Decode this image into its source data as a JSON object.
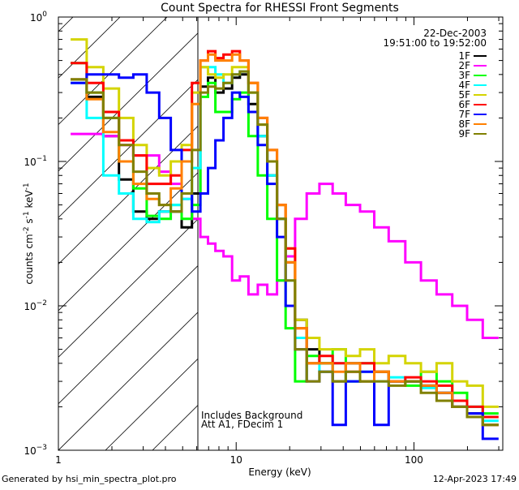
{
  "chart_data": {
    "type": "line",
    "title": "Count Spectra for RHESSI Front Segments",
    "xlabel": "Energy (keV)",
    "ylabel": "counts cm^-2 s^-1 keV^-1",
    "ylabel_parts": {
      "a": "counts cm",
      "b": "-2",
      "c": " s",
      "d": "-1",
      "e": " keV",
      "f": "-1"
    },
    "xscale": "log",
    "yscale": "log",
    "xlim": [
      1,
      316
    ],
    "ylim": [
      0.001,
      1
    ],
    "x_ticks": [
      {
        "value": 1,
        "label": "1"
      },
      {
        "value": 10,
        "label": "10"
      },
      {
        "value": 100,
        "label": "100"
      }
    ],
    "y_ticks": [
      {
        "value": 1,
        "base": "10",
        "exp": "0"
      },
      {
        "value": 0.1,
        "base": "10",
        "exp": "−1"
      },
      {
        "value": 0.01,
        "base": "10",
        "exp": "−2"
      },
      {
        "value": 0.001,
        "base": "10",
        "exp": "−3"
      }
    ],
    "date": "22-Dec-2003",
    "time_range": "19:51:00 to 19:52:00",
    "annotations": [
      "Includes Background",
      "Att A1, FDecim 1"
    ],
    "threshold_energy": 6.1,
    "legend_position": "top-right",
    "x": [
      1.3,
      1.6,
      2.0,
      2.4,
      2.9,
      3.4,
      4.0,
      4.6,
      5.3,
      6.0,
      6.6,
      7.3,
      8.0,
      9.0,
      10,
      11,
      12.5,
      14,
      16,
      18,
      20,
      23,
      27,
      32,
      38,
      45,
      55,
      65,
      80,
      100,
      120,
      150,
      180,
      220,
      270
    ],
    "series": [
      {
        "name": "1F",
        "color": "#000000",
        "values": [
          0.37,
          0.28,
          0.15,
          0.075,
          0.045,
          0.04,
          0.045,
          0.045,
          0.035,
          0.06,
          0.33,
          0.38,
          0.3,
          0.32,
          0.38,
          0.4,
          0.25,
          0.15,
          0.08,
          0.04,
          0.02,
          0.008,
          0.005,
          0.004,
          0.003,
          0.004,
          0.003,
          0.0035,
          0.003,
          0.003,
          0.0028,
          0.0025,
          0.002,
          0.0018,
          0.0015
        ]
      },
      {
        "name": "2F",
        "color": "#ff00ff",
        "values": [
          0.155,
          0.155,
          0.15,
          0.13,
          0.11,
          0.11,
          0.085,
          0.07,
          0.055,
          0.04,
          0.03,
          0.027,
          0.024,
          0.022,
          0.015,
          0.016,
          0.012,
          0.014,
          0.012,
          0.015,
          0.022,
          0.04,
          0.06,
          0.07,
          0.06,
          0.05,
          0.045,
          0.035,
          0.028,
          0.02,
          0.015,
          0.012,
          0.01,
          0.008,
          0.006
        ]
      },
      {
        "name": "3F",
        "color": "#00ff00",
        "values": [
          0.48,
          0.3,
          0.2,
          0.1,
          0.065,
          0.042,
          0.04,
          0.05,
          0.04,
          0.05,
          0.28,
          0.35,
          0.22,
          0.22,
          0.27,
          0.3,
          0.15,
          0.08,
          0.04,
          0.015,
          0.007,
          0.003,
          0.0045,
          0.004,
          0.005,
          0.003,
          0.004,
          0.0035,
          0.003,
          0.0028,
          0.0035,
          0.003,
          0.0025,
          0.002,
          0.0018
        ]
      },
      {
        "name": "4F",
        "color": "#00ffff",
        "values": [
          0.35,
          0.2,
          0.08,
          0.06,
          0.04,
          0.038,
          0.045,
          0.05,
          0.055,
          0.09,
          0.45,
          0.45,
          0.4,
          0.35,
          0.4,
          0.42,
          0.3,
          0.15,
          0.08,
          0.04,
          0.015,
          0.006,
          0.004,
          0.0035,
          0.004,
          0.003,
          0.0035,
          0.003,
          0.0032,
          0.003,
          0.0027,
          0.0025,
          0.0022,
          0.002,
          0.0016
        ]
      },
      {
        "name": "5F",
        "color": "#d4d400",
        "values": [
          0.7,
          0.45,
          0.32,
          0.2,
          0.13,
          0.09,
          0.08,
          0.1,
          0.13,
          0.3,
          0.45,
          0.4,
          0.38,
          0.4,
          0.45,
          0.45,
          0.3,
          0.18,
          0.1,
          0.05,
          0.025,
          0.008,
          0.006,
          0.005,
          0.005,
          0.0045,
          0.005,
          0.004,
          0.0045,
          0.004,
          0.0035,
          0.004,
          0.003,
          0.0028,
          0.002
        ]
      },
      {
        "name": "6F",
        "color": "#ff0000",
        "values": [
          0.48,
          0.35,
          0.22,
          0.14,
          0.11,
          0.07,
          0.07,
          0.08,
          0.12,
          0.35,
          0.5,
          0.58,
          0.52,
          0.55,
          0.58,
          0.5,
          0.35,
          0.2,
          0.12,
          0.05,
          0.025,
          0.007,
          0.004,
          0.0045,
          0.004,
          0.0035,
          0.004,
          0.0035,
          0.003,
          0.0032,
          0.003,
          0.0028,
          0.0022,
          0.002,
          0.0017
        ]
      },
      {
        "name": "7F",
        "color": "#0000ff",
        "values": [
          0.35,
          0.4,
          0.4,
          0.38,
          0.4,
          0.3,
          0.2,
          0.12,
          0.06,
          0.045,
          0.06,
          0.09,
          0.14,
          0.2,
          0.3,
          0.28,
          0.22,
          0.13,
          0.07,
          0.03,
          0.01,
          0.005,
          0.003,
          0.0035,
          0.0015,
          0.003,
          0.0035,
          0.0015,
          0.003,
          0.003,
          0.0028,
          0.0025,
          0.002,
          0.0018,
          0.0012
        ]
      },
      {
        "name": "8F",
        "color": "#ff8000",
        "values": [
          0.37,
          0.27,
          0.16,
          0.1,
          0.07,
          0.055,
          0.05,
          0.065,
          0.1,
          0.25,
          0.5,
          0.55,
          0.5,
          0.5,
          0.55,
          0.5,
          0.35,
          0.2,
          0.12,
          0.05,
          0.02,
          0.007,
          0.004,
          0.004,
          0.0035,
          0.004,
          0.003,
          0.0035,
          0.003,
          0.003,
          0.0028,
          0.0025,
          0.002,
          0.0017,
          0.0015
        ]
      },
      {
        "name": "9F",
        "color": "#808000",
        "values": [
          0.37,
          0.3,
          0.2,
          0.13,
          0.085,
          0.06,
          0.05,
          0.045,
          0.06,
          0.12,
          0.3,
          0.33,
          0.32,
          0.35,
          0.4,
          0.42,
          0.3,
          0.18,
          0.1,
          0.04,
          0.015,
          0.005,
          0.003,
          0.0035,
          0.003,
          0.0035,
          0.003,
          0.003,
          0.0028,
          0.003,
          0.0025,
          0.0022,
          0.002,
          0.0017,
          0.0015
        ]
      }
    ]
  },
  "footer": {
    "generated_by": "Generated by hsi_min_spectra_plot.pro",
    "timestamp": "12-Apr-2023 17:49"
  }
}
